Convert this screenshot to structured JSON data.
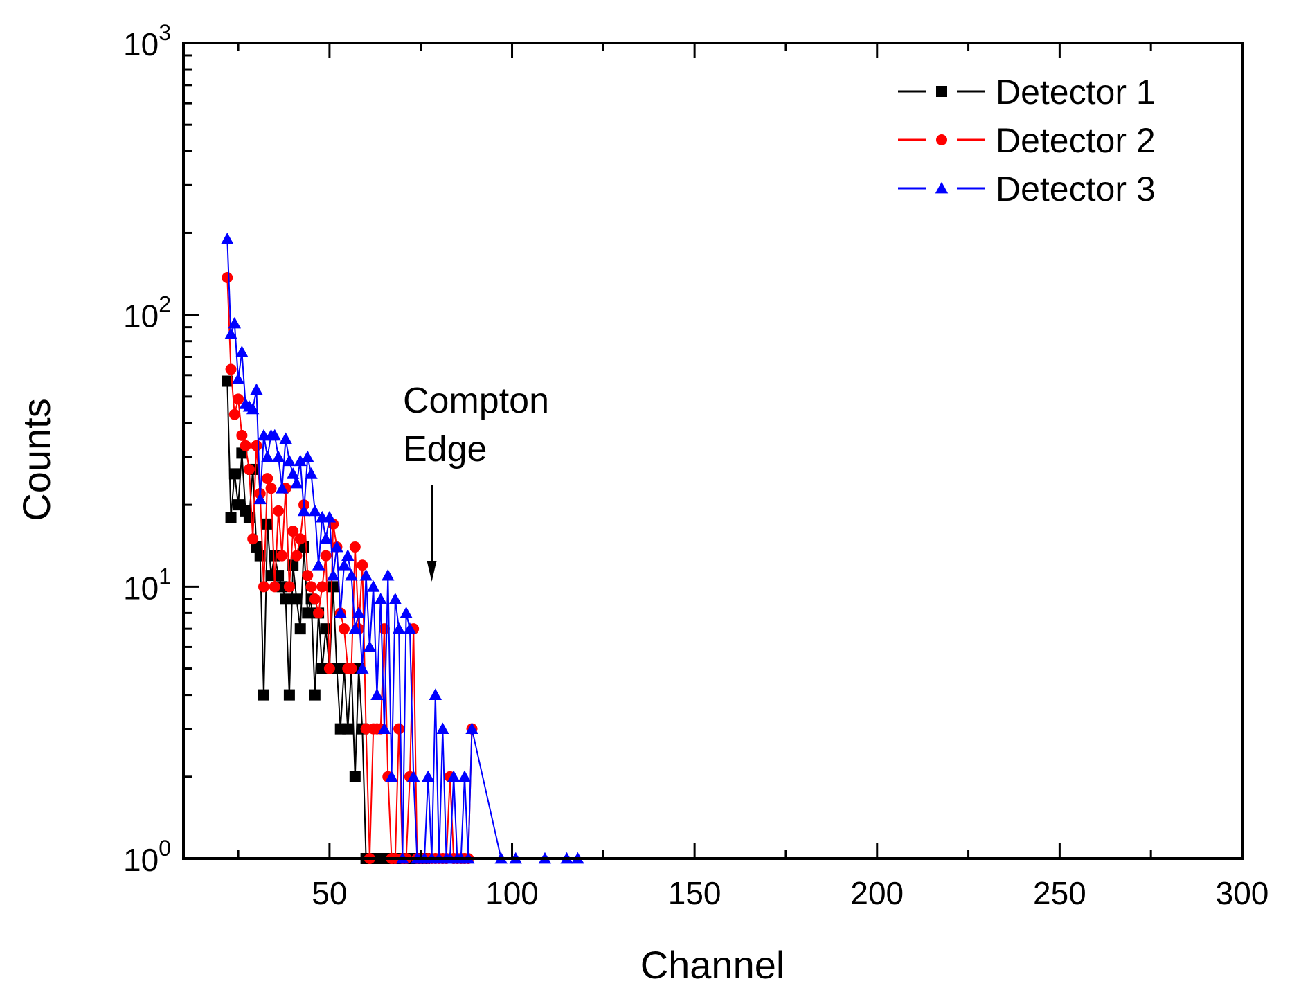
{
  "chart_data": {
    "type": "line",
    "title": "",
    "xlabel": "Channel",
    "ylabel": "Counts",
    "xlim": [
      10,
      300
    ],
    "ylim": [
      1,
      1000
    ],
    "yscale": "log",
    "x_ticks": [
      50,
      100,
      150,
      200,
      250,
      300
    ],
    "x_tick_labels": [
      "50",
      "100",
      "150",
      "200",
      "250",
      "300"
    ],
    "y_ticks": [
      1,
      10,
      100,
      1000
    ],
    "y_tick_labels": [
      {
        "base": "10",
        "exp": "0"
      },
      {
        "base": "10",
        "exp": "1"
      },
      {
        "base": "10",
        "exp": "2"
      },
      {
        "base": "10",
        "exp": "3"
      }
    ],
    "grid": false,
    "legend_position": "top-right",
    "annotation": {
      "lines": [
        "Compton",
        "Edge"
      ],
      "arrow_x": 78,
      "arrow_y": 10
    },
    "series": [
      {
        "name": "Detector 1",
        "color": "#000000",
        "marker": "square",
        "x": [
          22,
          23,
          24,
          25,
          26,
          27,
          28,
          29,
          30,
          31,
          32,
          33,
          34,
          35,
          36,
          37,
          38,
          39,
          40,
          41,
          42,
          43,
          44,
          45,
          46,
          47,
          48,
          49,
          50,
          51,
          52,
          53,
          54,
          55,
          56,
          57,
          58,
          59,
          60,
          61,
          62,
          63,
          64,
          65,
          66,
          67,
          68,
          69,
          70,
          71,
          72,
          73,
          74,
          75,
          76
        ],
        "y": [
          57,
          18,
          26,
          20,
          31,
          19,
          18,
          27,
          14,
          13,
          4,
          17,
          11,
          13,
          11,
          10,
          9,
          4,
          12,
          9,
          7,
          14,
          8,
          9,
          4,
          8,
          5,
          7,
          5,
          10,
          5,
          3,
          5,
          3,
          5,
          2,
          5,
          3,
          1,
          1,
          1,
          1,
          1,
          1,
          1,
          1,
          1,
          1,
          1,
          1,
          1,
          1,
          1,
          1,
          1
        ]
      },
      {
        "name": "Detector 2",
        "color": "#ff0000",
        "marker": "circle",
        "x": [
          22,
          23,
          24,
          25,
          26,
          27,
          28,
          29,
          30,
          31,
          32,
          33,
          34,
          35,
          36,
          37,
          38,
          39,
          40,
          41,
          42,
          43,
          44,
          45,
          46,
          47,
          48,
          49,
          50,
          51,
          52,
          53,
          54,
          55,
          56,
          57,
          58,
          59,
          60,
          61,
          62,
          63,
          64,
          65,
          66,
          67,
          68,
          69,
          70,
          71,
          72,
          73,
          74,
          75,
          76,
          77,
          78,
          79,
          80,
          81,
          82,
          83,
          84,
          85,
          86,
          87,
          88,
          89
        ],
        "y": [
          137,
          63,
          43,
          49,
          36,
          33,
          27,
          15,
          33,
          22,
          10,
          25,
          23,
          10,
          19,
          13,
          23,
          10,
          16,
          13,
          15,
          20,
          11,
          10,
          9,
          8,
          10,
          13,
          5,
          17,
          14,
          8,
          7,
          5,
          5,
          14,
          7,
          12,
          3,
          1,
          3,
          3,
          3,
          7,
          2,
          1,
          1,
          3,
          1,
          1,
          2,
          7,
          1,
          1,
          1,
          1,
          1,
          1,
          1,
          1,
          1,
          2,
          1,
          1,
          1,
          1,
          1,
          3
        ]
      },
      {
        "name": "Detector 3",
        "color": "#0000ff",
        "marker": "triangle",
        "x": [
          22,
          23,
          24,
          25,
          26,
          27,
          28,
          29,
          30,
          31,
          32,
          33,
          34,
          35,
          36,
          37,
          38,
          39,
          40,
          41,
          42,
          43,
          44,
          45,
          46,
          47,
          48,
          49,
          50,
          51,
          52,
          53,
          54,
          55,
          56,
          57,
          58,
          59,
          60,
          61,
          62,
          63,
          64,
          65,
          66,
          67,
          68,
          69,
          70,
          71,
          72,
          73,
          74,
          75,
          76,
          77,
          78,
          79,
          80,
          81,
          82,
          83,
          84,
          85,
          86,
          87,
          88,
          89,
          97,
          101,
          109,
          115,
          118
        ],
        "y": [
          190,
          85,
          93,
          58,
          73,
          47,
          46,
          45,
          53,
          21,
          36,
          30,
          36,
          36,
          30,
          23,
          35,
          29,
          26,
          24,
          29,
          19,
          30,
          26,
          19,
          12,
          18,
          15,
          18,
          11,
          14,
          8,
          12,
          13,
          11,
          7,
          8,
          5,
          11,
          6,
          10,
          4,
          9,
          3,
          11,
          2,
          9,
          7,
          1,
          8,
          7,
          2,
          1,
          1,
          1,
          2,
          1,
          4,
          1,
          3,
          1,
          1,
          2,
          1,
          1,
          2,
          1,
          3,
          1,
          1,
          1,
          1,
          1
        ]
      }
    ]
  }
}
